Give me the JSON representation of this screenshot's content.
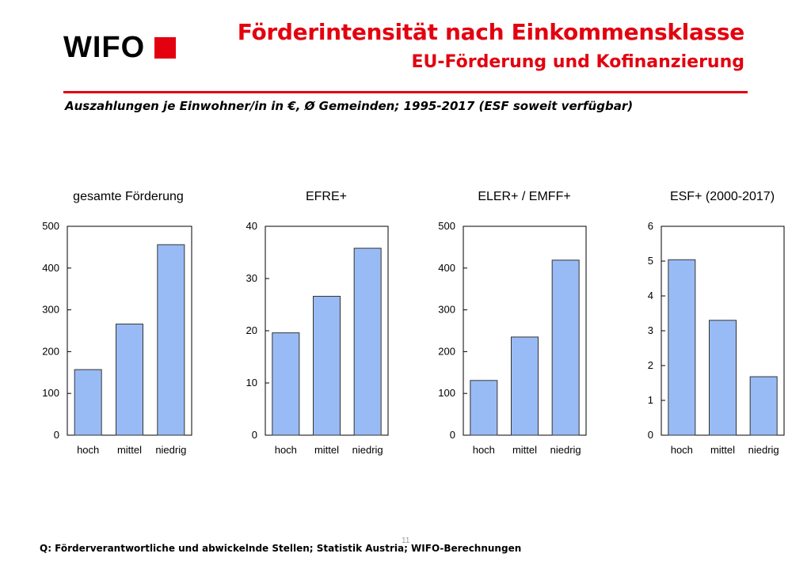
{
  "header": {
    "logo_text": "WIFO",
    "title": "Förderintensität nach Einkommensklasse",
    "subtitle": "EU-Förderung und Kofinanzierung",
    "caption": "Auszahlungen je Einwohner/in in €, Ø Gemeinden; 1995-2017 (ESF soweit verfügbar)"
  },
  "colors": {
    "brand_red": "#e3000f",
    "bar_fill": "#99bbf5",
    "bar_stroke": "#333333"
  },
  "chart_data": [
    {
      "type": "bar",
      "title": "gesamte Förderung",
      "categories": [
        "hoch",
        "mittel",
        "niedrig"
      ],
      "values": [
        157,
        266,
        456
      ],
      "ylim": [
        0,
        500
      ],
      "yticks": [
        0,
        100,
        200,
        300,
        400,
        500
      ],
      "grid": false
    },
    {
      "type": "bar",
      "title": "EFRE+",
      "categories": [
        "hoch",
        "mittel",
        "niedrig"
      ],
      "values": [
        19.6,
        26.6,
        35.8
      ],
      "ylim": [
        0,
        40
      ],
      "yticks": [
        0,
        10,
        20,
        30,
        40
      ],
      "grid": false
    },
    {
      "type": "bar",
      "title": "ELER+ / EMFF+",
      "categories": [
        "hoch",
        "mittel",
        "niedrig"
      ],
      "values": [
        131,
        235,
        419
      ],
      "ylim": [
        0,
        500
      ],
      "yticks": [
        0,
        100,
        200,
        300,
        400,
        500
      ],
      "grid": false
    },
    {
      "type": "bar",
      "title": "ESF+ (2000-2017)",
      "categories": [
        "hoch",
        "mittel",
        "niedrig"
      ],
      "values": [
        5.04,
        3.3,
        1.68
      ],
      "ylim": [
        0,
        6
      ],
      "yticks": [
        0,
        1,
        2,
        3,
        4,
        5,
        6
      ],
      "grid": false
    }
  ],
  "footer": {
    "source": "Q: Förderverantwortliche und abwickelnde Stellen; Statistik Austria; WIFO-Berechnungen",
    "page_number": "11"
  }
}
